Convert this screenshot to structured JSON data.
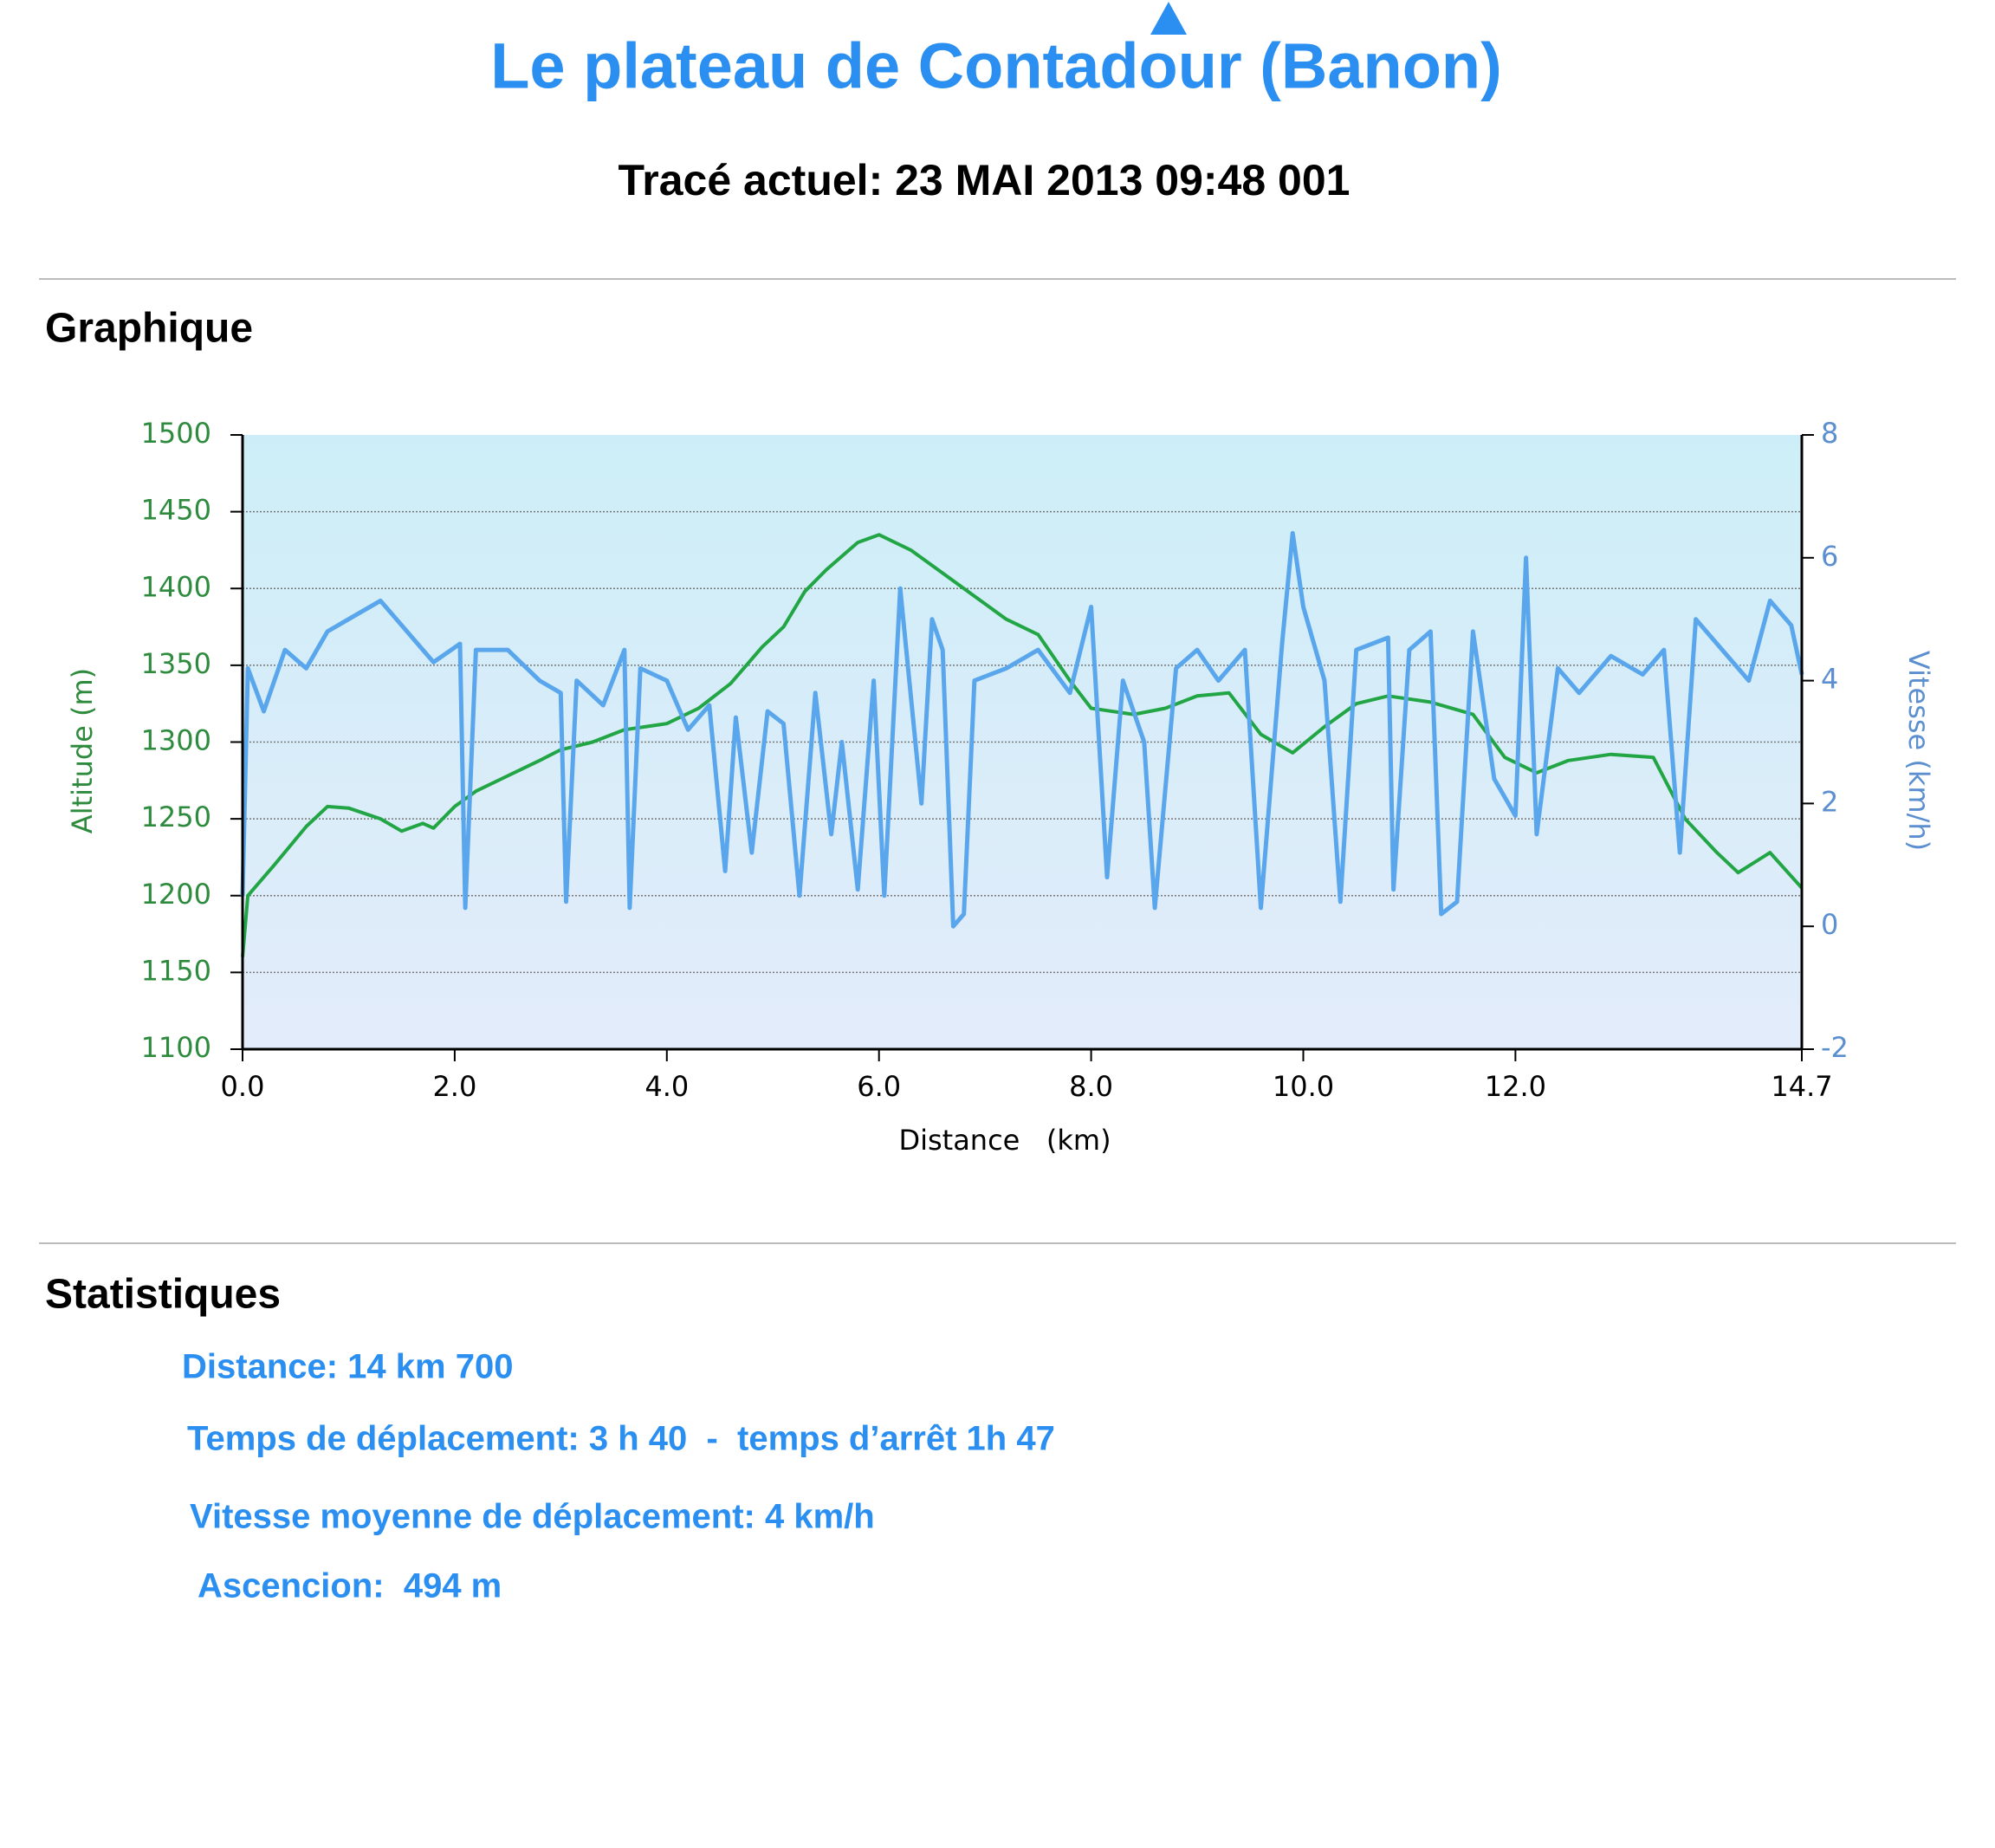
{
  "header": {
    "title": "Le plateau de Contadour (Banon)",
    "subtitle": "Tracé actuel: 23 MAI 2013 09:48 001"
  },
  "sections": {
    "graph": "Graphique",
    "stats": "Statistiques"
  },
  "chart_data": {
    "type": "line",
    "xlabel": "Distance   (km)",
    "ylabel": "Altitude (m)",
    "y2label": "Vitesse (km/h)",
    "xlim": [
      0,
      14.7
    ],
    "xticks": [
      {
        "value": 0,
        "label": "0.0"
      },
      {
        "value": 2,
        "label": "2.0"
      },
      {
        "value": 4,
        "label": "4.0"
      },
      {
        "value": 6,
        "label": "6.0"
      },
      {
        "value": 8,
        "label": "8.0"
      },
      {
        "value": 10,
        "label": "10.0"
      },
      {
        "value": 12,
        "label": "12.0"
      },
      14.7
    ],
    "ylim": [
      1100,
      1500
    ],
    "yticks": [
      1100,
      1150,
      1200,
      1250,
      1300,
      1350,
      1400,
      1450,
      1500
    ],
    "y2lim": [
      -2,
      8
    ],
    "y2ticks": [
      -2,
      0,
      2,
      4,
      6,
      8
    ],
    "grid": true,
    "series": [
      {
        "name": "Altitude",
        "color": "#22a544",
        "axis": "y",
        "x": [
          0,
          0.05,
          0.3,
          0.6,
          0.8,
          1.0,
          1.3,
          1.5,
          1.7,
          1.8,
          2.0,
          2.2,
          2.5,
          2.8,
          3.0,
          3.3,
          3.6,
          4.0,
          4.3,
          4.6,
          4.9,
          5.1,
          5.3,
          5.5,
          5.8,
          6.0,
          6.3,
          6.6,
          6.9,
          7.2,
          7.5,
          7.8,
          8.0,
          8.4,
          8.7,
          9.0,
          9.3,
          9.6,
          9.9,
          10.2,
          10.5,
          10.8,
          11.2,
          11.6,
          11.9,
          12.2,
          12.5,
          12.9,
          13.3,
          13.6,
          13.9,
          14.1,
          14.4,
          14.7
        ],
        "values": [
          1160,
          1200,
          1220,
          1245,
          1258,
          1257,
          1250,
          1242,
          1247,
          1244,
          1258,
          1268,
          1278,
          1288,
          1295,
          1300,
          1308,
          1312,
          1322,
          1338,
          1362,
          1375,
          1398,
          1412,
          1430,
          1435,
          1425,
          1410,
          1395,
          1380,
          1370,
          1340,
          1322,
          1318,
          1322,
          1330,
          1332,
          1305,
          1293,
          1310,
          1325,
          1330,
          1326,
          1318,
          1290,
          1280,
          1288,
          1292,
          1290,
          1250,
          1228,
          1215,
          1228,
          1205
        ]
      },
      {
        "name": "Vitesse",
        "color": "#5aa6ec",
        "axis": "y2",
        "x": [
          0,
          0.05,
          0.2,
          0.4,
          0.6,
          0.8,
          1.0,
          1.3,
          1.5,
          1.8,
          2.05,
          2.1,
          2.2,
          2.5,
          2.8,
          3.0,
          3.05,
          3.15,
          3.4,
          3.6,
          3.65,
          3.75,
          4.0,
          4.2,
          4.4,
          4.55,
          4.65,
          4.8,
          4.95,
          5.1,
          5.25,
          5.4,
          5.55,
          5.65,
          5.8,
          5.95,
          6.05,
          6.2,
          6.4,
          6.5,
          6.6,
          6.7,
          6.8,
          6.9,
          7.2,
          7.5,
          7.8,
          8.0,
          8.15,
          8.3,
          8.5,
          8.6,
          8.8,
          9.0,
          9.2,
          9.45,
          9.6,
          9.8,
          9.9,
          10.0,
          10.2,
          10.35,
          10.5,
          10.8,
          10.85,
          11.0,
          11.2,
          11.3,
          11.45,
          11.6,
          11.8,
          12.0,
          12.1,
          12.2,
          12.4,
          12.6,
          12.9,
          13.2,
          13.4,
          13.55,
          13.7,
          14.0,
          14.2,
          14.4,
          14.6,
          14.7
        ],
        "values": [
          0.5,
          4.2,
          3.5,
          4.5,
          4.2,
          4.8,
          5.0,
          5.3,
          4.9,
          4.3,
          4.6,
          0.3,
          4.5,
          4.5,
          4.0,
          3.8,
          0.4,
          4.0,
          3.6,
          4.5,
          0.3,
          4.2,
          4.0,
          3.2,
          3.6,
          0.9,
          3.4,
          1.2,
          3.5,
          3.3,
          0.5,
          3.8,
          1.5,
          3.0,
          0.6,
          4.0,
          0.5,
          5.5,
          2.0,
          5.0,
          4.5,
          0.0,
          0.2,
          4.0,
          4.2,
          4.5,
          3.8,
          5.2,
          0.8,
          4.0,
          3.0,
          0.3,
          4.2,
          4.5,
          4.0,
          4.5,
          0.3,
          4.6,
          6.4,
          5.2,
          4.0,
          0.4,
          4.5,
          4.7,
          0.6,
          4.5,
          4.8,
          0.2,
          0.4,
          4.8,
          2.4,
          1.8,
          6.0,
          1.5,
          4.2,
          3.8,
          4.4,
          4.1,
          4.5,
          1.2,
          5.0,
          4.4,
          4.0,
          5.3,
          4.9,
          4.1
        ]
      }
    ]
  },
  "stats": [
    "Distance: 14 km 700",
    "Temps de déplacement: 3 h 40  -  temps d’arrêt 1h 47",
    "Vitesse moyenne de déplacement: 4 km/h",
    "Ascencion:  494 m"
  ]
}
